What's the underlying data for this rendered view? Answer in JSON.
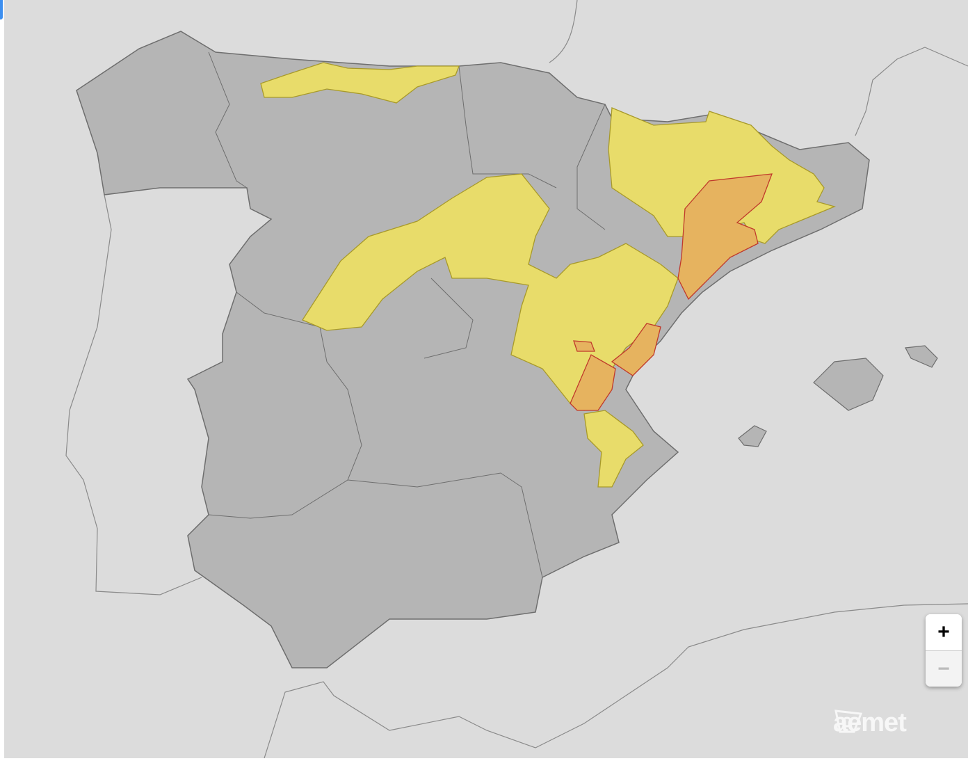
{
  "map": {
    "alert_colors": {
      "none": "#b5b5b5",
      "yellow": "#e8dc6a",
      "orange": "#e6b35f"
    },
    "controls": {
      "zoom_in_label": "+",
      "zoom_out_label": "−"
    },
    "logo": {
      "text": "aemet",
      "icon": "aemet-logo-icon"
    }
  }
}
